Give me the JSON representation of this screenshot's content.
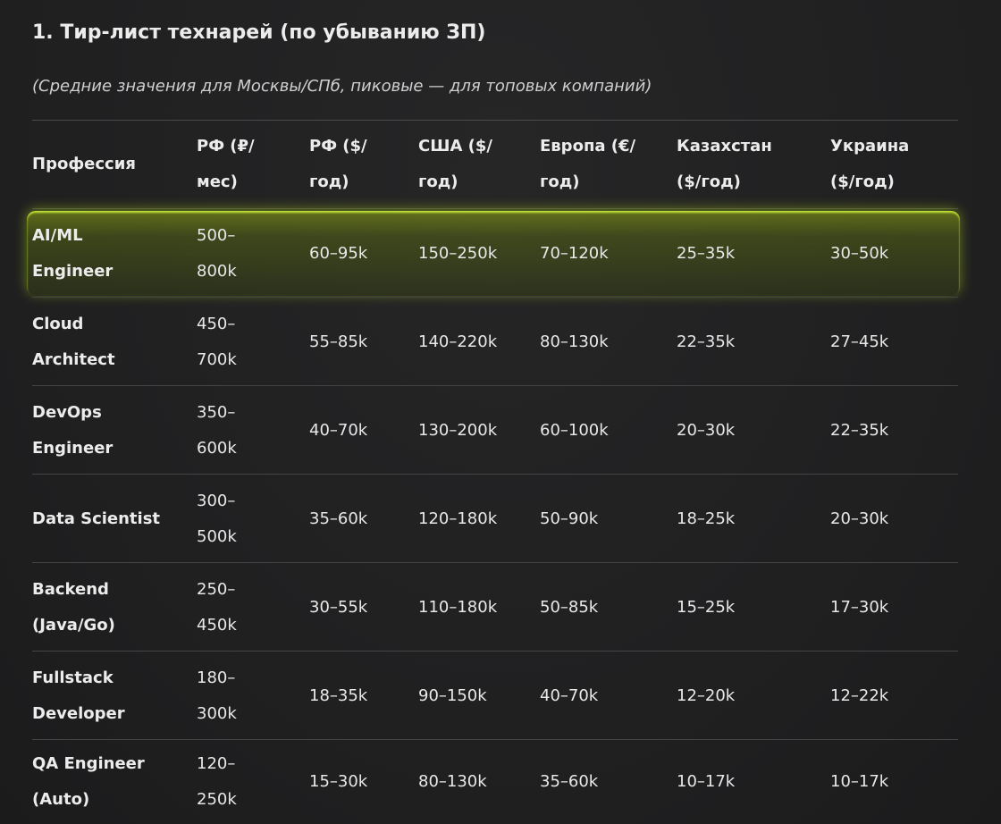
{
  "title": "1. Тир-лист технарей (по убыванию ЗП)",
  "subtitle": "(Средние значения для Москвы/СПб, пиковые — для топовых компаний)",
  "table": {
    "headers": [
      [
        "Профессия"
      ],
      [
        "РФ (₽/",
        "мес)"
      ],
      [
        "РФ ($/",
        "год)"
      ],
      [
        "США ($/",
        "год)"
      ],
      [
        "Европа (€/",
        "год)"
      ],
      [
        "Казахстан",
        "($/год)"
      ],
      [
        "Украина",
        "($/год)"
      ]
    ],
    "rows": [
      {
        "profession": [
          "AI/ML",
          "Engineer"
        ],
        "rf_rub_month": [
          "500–",
          "800k"
        ],
        "rf_usd_year": "60–95k",
        "usa": "150–250k",
        "europe": "70–120k",
        "kazakhstan": "25–35k",
        "ukraine": "30–50k"
      },
      {
        "profession": [
          "Cloud",
          "Architect"
        ],
        "rf_rub_month": [
          "450–",
          "700k"
        ],
        "rf_usd_year": "55–85k",
        "usa": "140–220k",
        "europe": "80–130k",
        "kazakhstan": "22–35k",
        "ukraine": "27–45k"
      },
      {
        "profession": [
          "DevOps",
          "Engineer"
        ],
        "rf_rub_month": [
          "350–",
          "600k"
        ],
        "rf_usd_year": "40–70k",
        "usa": "130–200k",
        "europe": "60–100k",
        "kazakhstan": "20–30k",
        "ukraine": "22–35k"
      },
      {
        "profession": [
          "Data Scientist"
        ],
        "rf_rub_month": [
          "300–",
          "500k"
        ],
        "rf_usd_year": "35–60k",
        "usa": "120–180k",
        "europe": "50–90k",
        "kazakhstan": "18–25k",
        "ukraine": "20–30k"
      },
      {
        "profession": [
          "Backend",
          "(Java/Go)"
        ],
        "rf_rub_month": [
          "250–",
          "450k"
        ],
        "rf_usd_year": "30–55k",
        "usa": "110–180k",
        "europe": "50–85k",
        "kazakhstan": "15–25k",
        "ukraine": "17–30k"
      },
      {
        "profession": [
          "Fullstack",
          "Developer"
        ],
        "rf_rub_month": [
          "180–",
          "300k"
        ],
        "rf_usd_year": "18–35k",
        "usa": "90–150k",
        "europe": "40–70k",
        "kazakhstan": "12–20k",
        "ukraine": "12–22k"
      },
      {
        "profession": [
          "QA Engineer",
          "(Auto)"
        ],
        "rf_rub_month": [
          "120–",
          "250k"
        ],
        "rf_usd_year": "15–30k",
        "usa": "80–130k",
        "europe": "35–60k",
        "kazakhstan": "10–17k",
        "ukraine": "10–17k"
      }
    ],
    "highlight_color": "#b7d81c"
  }
}
